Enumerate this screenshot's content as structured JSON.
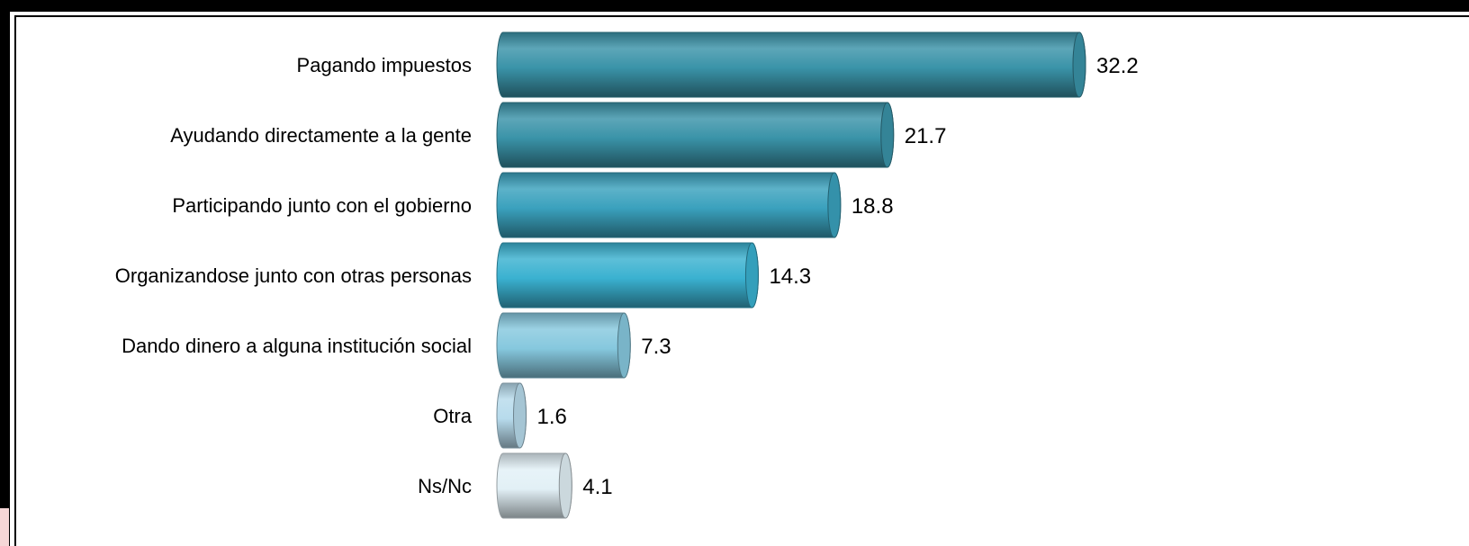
{
  "chart_data": {
    "type": "bar",
    "orientation": "horizontal",
    "categories": [
      "Pagando impuestos",
      "Ayudando directamente a la gente",
      "Participando junto con el gobierno",
      "Organizandose junto con otras personas",
      "Dando dinero a alguna institución social",
      "Otra",
      "Ns/Nc"
    ],
    "values": [
      32.2,
      21.7,
      18.8,
      14.3,
      7.3,
      1.6,
      4.1
    ],
    "value_labels": [
      "32.2",
      "21.7",
      "18.8",
      "14.3",
      "7.3",
      "1.6",
      "4.1"
    ],
    "title": "",
    "xlabel": "",
    "ylabel": "",
    "xlim": [
      0,
      32.2
    ],
    "grid": false,
    "legend": "none",
    "bar_colors": [
      "#3a93a8",
      "#3a93a8",
      "#3aa1bd",
      "#3ab1d0",
      "#86c8de",
      "#b7dbec",
      "#e2f0f6"
    ]
  }
}
